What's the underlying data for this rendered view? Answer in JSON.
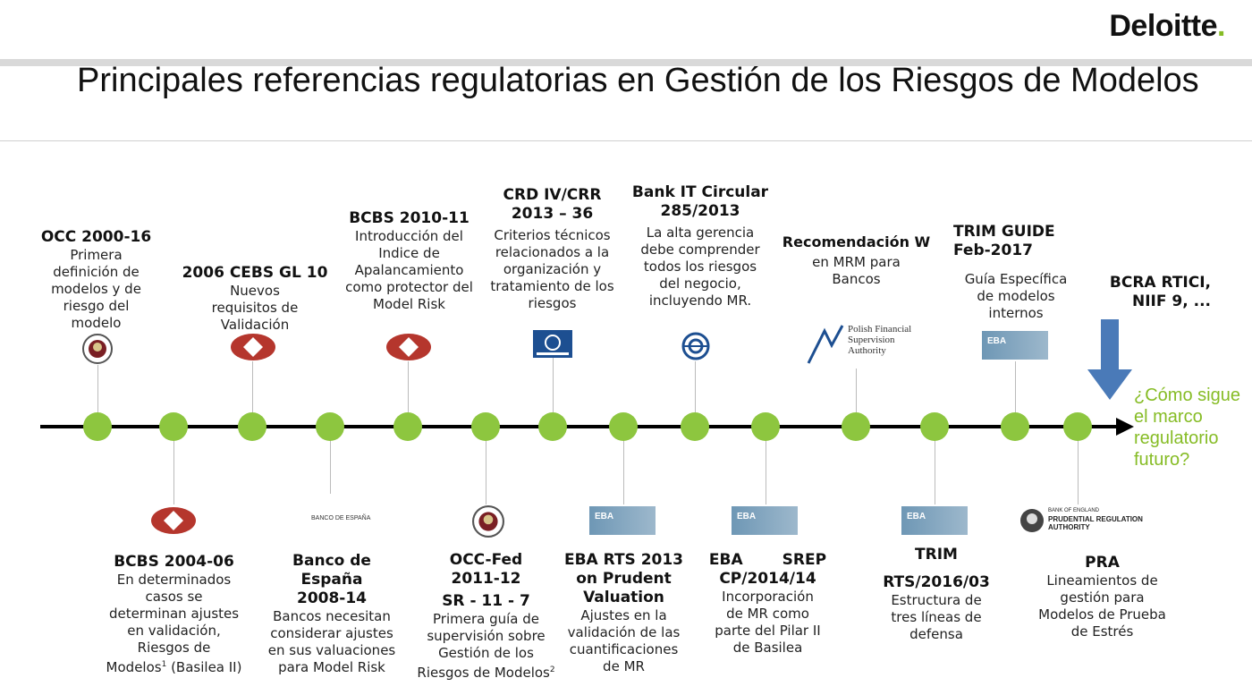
{
  "brand": {
    "name": "Deloitte",
    "dot": "."
  },
  "title": "Principales referencias regulatorias en Gestión de los Riesgos de Modelos",
  "colors": {
    "accent": "#86bc25",
    "node": "#8dc63f",
    "arrow": "#4a7ab8",
    "bis": "#b5362d"
  },
  "top": {
    "occ": {
      "h": "OCC 2000-16",
      "b": "Primera definición de modelos y de riesgo del modelo",
      "icon": "occ-seal-icon"
    },
    "cebs": {
      "h": "2006 CEBS GL 10",
      "b": "Nuevos requisitos de Validación",
      "icon": "bis-logo-icon"
    },
    "bcbs1011": {
      "h": "BCBS 2010-11",
      "b": "Introducción del Indice de Apalancamiento como protector del Model Risk",
      "icon": "bis-logo-icon"
    },
    "crd": {
      "h1": "CRD IV/CRR",
      "h2": "2013 – 36",
      "b": "Criterios técnicos relacionados a la organización y tratamiento de los riesgos",
      "icon": "ecb-logo-icon"
    },
    "bankit": {
      "h1": "Bank IT Circular",
      "h2": "285/2013",
      "b": "La alta gerencia debe comprender todos los riesgos del negocio, incluyendo MR.",
      "icon": "banca-italia-icon"
    },
    "recw": {
      "h": "Recomendación W",
      "b": "en MRM para Bancos",
      "logo": "Polish Financial Supervision Authority"
    },
    "trimguide": {
      "h1": "TRIM GUIDE",
      "h2": "Feb-2017",
      "b": "Guía Específica de modelos internos",
      "logo": "EBA"
    },
    "bcra": {
      "h1": "BCRA RTICI,",
      "h2": "NIIF 9, ..."
    }
  },
  "bottom": {
    "bcbs0406": {
      "h": "BCBS 2004-06",
      "b1": "En determinados casos se determinan ajustes en validación, Riesgos de Modelos",
      "sup": "1",
      "b2": " (Basilea II)",
      "icon": "bis-logo-icon"
    },
    "bde": {
      "h1": "Banco de",
      "h2": "España",
      "h3": "2008-14",
      "b": "Bancos necesitan considerar ajustes en sus valuaciones para Model Risk",
      "logo": "BANCO DE ESPAÑA"
    },
    "occfed": {
      "h1": "OCC-Fed",
      "h2": "2011-12",
      "h3": "SR - 11 - 7",
      "b": "Primera guía de supervisión sobre Gestión de los Riesgos de Modelos",
      "sup": "2",
      "icon": "occ-seal-icon"
    },
    "ebarts": {
      "h1": "EBA RTS 2013",
      "h2": "on Prudent",
      "h3": "Valuation",
      "b": "Ajustes en la validación de las cuantificaciones de MR",
      "logo": "EBA"
    },
    "ebacp": {
      "h1a": "EBA",
      "h1b": "SREP",
      "h2": "CP/2014/14",
      "b": "Incorporación de MR como parte del Pilar II de Basilea",
      "logo": "EBA"
    },
    "trim": {
      "h1": "TRIM",
      "h2": "RTS/2016/03",
      "b": "Estructura de tres líneas de defensa",
      "logo": "EBA"
    },
    "pra": {
      "h": "PRA",
      "b": "Lineamientos de gestión para Modelos de Prueba de Estrés",
      "logo_small": "BANK OF ENGLAND",
      "logo_main": "PRUDENTIAL REGULATION AUTHORITY"
    }
  },
  "future": "¿Cómo sigue el marco regulatorio futuro?"
}
